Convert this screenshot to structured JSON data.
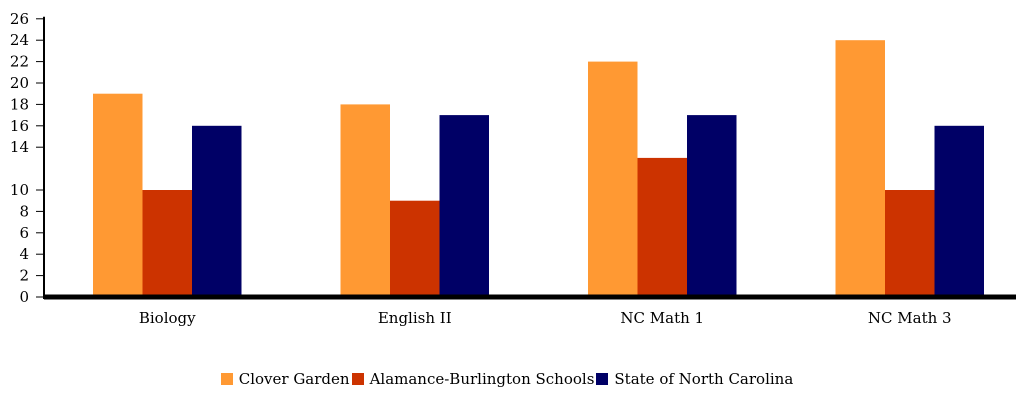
{
  "chart_data": {
    "type": "bar",
    "title": "",
    "xlabel": "",
    "ylabel": "",
    "categories": [
      "Biology",
      "English II",
      "NC Math 1",
      "NC Math 3"
    ],
    "series": [
      {
        "name": "Clover Garden",
        "color": "#FF9933",
        "values": [
          19,
          18,
          22,
          24
        ]
      },
      {
        "name": "Alamance-Burlington Schools",
        "color": "#CC3300",
        "values": [
          10,
          9,
          13,
          10
        ]
      },
      {
        "name": "State of North Carolina",
        "color": "#000066",
        "values": [
          16,
          17,
          17,
          16
        ]
      }
    ],
    "ylim": [
      0,
      26
    ],
    "yticks": [
      0,
      2,
      4,
      6,
      8,
      10,
      14,
      16,
      18,
      20,
      22,
      24,
      26
    ],
    "ytick_labels": [
      "0",
      "2",
      "4",
      "6",
      "8",
      "10",
      "14",
      "16",
      "18",
      "20",
      "22",
      "24",
      "26"
    ],
    "grid": false,
    "legend_position": "bottom-center"
  }
}
